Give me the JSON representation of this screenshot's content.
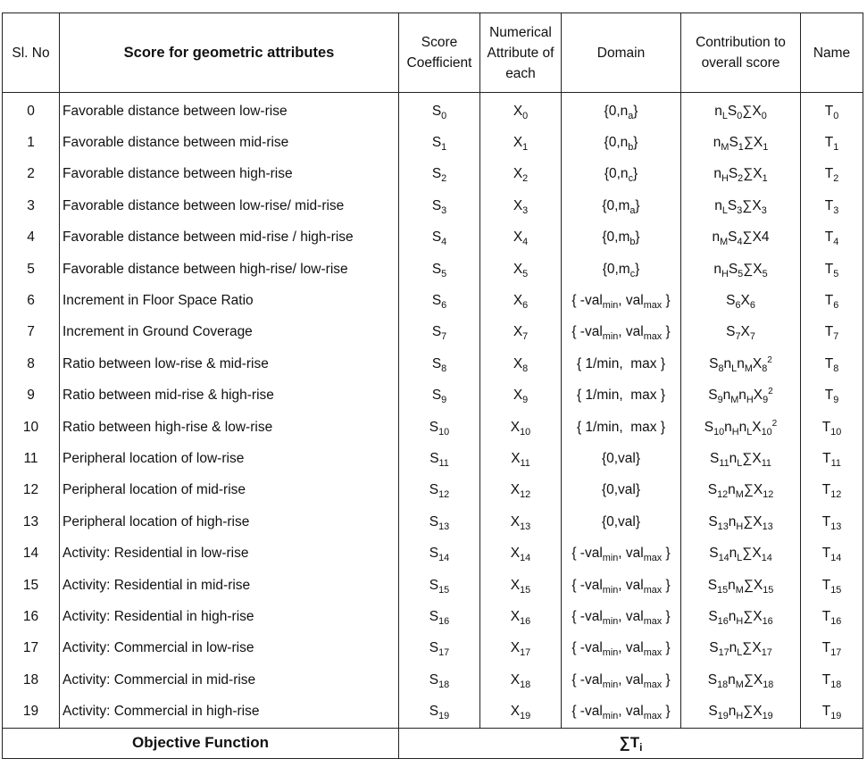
{
  "header": {
    "sl_no": "Sl. No",
    "attribute": "Score for geometric attributes",
    "score_coefficient": "Score Coefficient",
    "numerical_attribute": "Numerical Attribute of each",
    "domain": "Domain",
    "contribution": "Contribution to overall score",
    "name": "Name"
  },
  "rows": [
    {
      "sl": "0",
      "attribute": "Favorable distance between low-rise",
      "coef": "S<sub>0</sub>",
      "num": "X<sub>0</sub>",
      "domain": "{0,n<sub>a</sub>}",
      "contrib": "n<sub>L</sub>S<sub>0</sub>∑X<sub>0</sub>",
      "name": "T<sub>0</sub>"
    },
    {
      "sl": "1",
      "attribute": "Favorable distance between mid-rise",
      "coef": "S<sub>1</sub>",
      "num": "X<sub>1</sub>",
      "domain": "{0,n<sub>b</sub>}",
      "contrib": "n<sub>M</sub>S<sub>1</sub>∑X<sub>1</sub>",
      "name": "T<sub>1</sub>"
    },
    {
      "sl": "2",
      "attribute": "Favorable distance between high-rise",
      "coef": "S<sub>2</sub>",
      "num": "X<sub>2</sub>",
      "domain": "{0,n<sub>c</sub>}",
      "contrib": "n<sub>H</sub>S<sub>2</sub>∑X<sub>1</sub>",
      "name": "T<sub>2</sub>"
    },
    {
      "sl": "3",
      "attribute": "Favorable distance between low-rise/ mid-rise",
      "coef": "S<sub>3</sub>",
      "num": "X<sub>3</sub>",
      "domain": "{0,m<sub>a</sub>}",
      "contrib": "n<sub>L</sub>S<sub>3</sub>∑X<sub>3</sub>",
      "name": "T<sub>3</sub>"
    },
    {
      "sl": "4",
      "attribute": "Favorable distance between mid-rise / high-rise",
      "coef": "S<sub>4</sub>",
      "num": "X<sub>4</sub>",
      "domain": "{0,m<sub>b</sub>}",
      "contrib": "n<sub>M</sub>S<sub>4</sub>∑X4",
      "name": "T<sub>4</sub>"
    },
    {
      "sl": "5",
      "attribute": "Favorable distance between high-rise/ low-rise",
      "coef": "S<sub>5</sub>",
      "num": "X<sub>5</sub>",
      "domain": "{0,m<sub>c</sub>}",
      "contrib": "n<sub>H</sub>S<sub>5</sub>∑X<sub>5</sub>",
      "name": "T<sub>5</sub>"
    },
    {
      "sl": "6",
      "attribute": "Increment in Floor Space Ratio",
      "coef": "S<sub>6</sub>",
      "num": "X<sub>6</sub>",
      "domain": "{ -val<sub>min</sub>, val<sub>max</sub> }",
      "contrib": "S<sub>6</sub>X<sub>6</sub>",
      "name": "T<sub>6</sub>"
    },
    {
      "sl": "7",
      "attribute": "Increment in Ground Coverage",
      "coef": "S<sub>7</sub>",
      "num": "X<sub>7</sub>",
      "domain": "{ -val<sub>min</sub>, val<sub>max</sub> }",
      "contrib": "S<sub>7</sub>X<sub>7</sub>",
      "name": "T<sub>7</sub>"
    },
    {
      "sl": "8",
      "attribute": "Ratio between low-rise &amp; mid-rise",
      "coef": "S<sub>8</sub>",
      "num": "X<sub>8</sub>",
      "domain": "{ 1/min,&nbsp; max }",
      "contrib": "S<sub>8</sub>n<sub>L</sub>n<sub>M</sub>X<sub>8</sub><sup>2</sup>",
      "name": "T<sub>8</sub>"
    },
    {
      "sl": "9",
      "attribute": "Ratio between mid-rise &amp; high-rise",
      "coef": "S<sub>9</sub>",
      "num": "X<sub>9</sub>",
      "domain": "{ 1/min,&nbsp; max }",
      "contrib": "S<sub>9</sub>n<sub>M</sub>n<sub>H</sub>X<sub>9</sub><sup>2</sup>",
      "name": "T<sub>9</sub>"
    },
    {
      "sl": "10",
      "attribute": "Ratio between high-rise &amp; low-rise",
      "coef": "S<sub>10</sub>",
      "num": "X<sub>10</sub>",
      "domain": "{ 1/min,&nbsp; max }",
      "contrib": "S<sub>10</sub>n<sub>H</sub>n<sub>L</sub>X<sub>10</sub><sup>2</sup>",
      "name": "T<sub>10</sub>"
    },
    {
      "sl": "11",
      "attribute": "Peripheral location of low-rise",
      "coef": "S<sub>11</sub>",
      "num": "X<sub>11</sub>",
      "domain": "{0,val}",
      "contrib": "S<sub>11</sub>n<sub>L</sub>∑X<sub>11</sub>",
      "name": "T<sub>11</sub>"
    },
    {
      "sl": "12",
      "attribute": "Peripheral location of mid-rise",
      "coef": "S<sub>12</sub>",
      "num": "X<sub>12</sub>",
      "domain": "{0,val}",
      "contrib": "S<sub>12</sub>n<sub>M</sub>∑X<sub>12</sub>",
      "name": "T<sub>12</sub>"
    },
    {
      "sl": "13",
      "attribute": "Peripheral location of high-rise",
      "coef": "S<sub>13</sub>",
      "num": "X<sub>13</sub>",
      "domain": "{0,val}",
      "contrib": "S<sub>13</sub>n<sub>H</sub>∑X<sub>13</sub>",
      "name": "T<sub>13</sub>"
    },
    {
      "sl": "14",
      "attribute": "Activity: Residential in low-rise",
      "coef": "S<sub>14</sub>",
      "num": "X<sub>14</sub>",
      "domain": "{ -val<sub>min</sub>, val<sub>max</sub> }",
      "contrib": "S<sub>14</sub>n<sub>L</sub>∑X<sub>14</sub>",
      "name": "T<sub>14</sub>"
    },
    {
      "sl": "15",
      "attribute": "Activity: Residential in mid-rise",
      "coef": "S<sub>15</sub>",
      "num": "X<sub>15</sub>",
      "domain": "{ -val<sub>min</sub>, val<sub>max</sub> }",
      "contrib": "S<sub>15</sub>n<sub>M</sub>∑X<sub>15</sub>",
      "name": "T<sub>15</sub>"
    },
    {
      "sl": "16",
      "attribute": "Activity: Residential in high-rise",
      "coef": "S<sub>16</sub>",
      "num": "X<sub>16</sub>",
      "domain": "{ -val<sub>min</sub>, val<sub>max</sub> }",
      "contrib": "S<sub>16</sub>n<sub>H</sub>∑X<sub>16</sub>",
      "name": "T<sub>16</sub>"
    },
    {
      "sl": "17",
      "attribute": "Activity: Commercial in low-rise",
      "coef": "S<sub>17</sub>",
      "num": "X<sub>17</sub>",
      "domain": "{ -val<sub>min</sub>, val<sub>max</sub> }",
      "contrib": "S<sub>17</sub>n<sub>L</sub>∑X<sub>17</sub>",
      "name": "T<sub>17</sub>"
    },
    {
      "sl": "18",
      "attribute": "Activity: Commercial in mid-rise",
      "coef": "S<sub>18</sub>",
      "num": "X<sub>18</sub>",
      "domain": "{ -val<sub>min</sub>, val<sub>max</sub> }",
      "contrib": "S<sub>18</sub>n<sub>M</sub>∑X<sub>18</sub>",
      "name": "T<sub>18</sub>"
    },
    {
      "sl": "19",
      "attribute": "Activity: Commercial in high-rise",
      "coef": "S<sub>19</sub>",
      "num": "X<sub>19</sub>",
      "domain": "{ -val<sub>min</sub>, val<sub>max</sub> }",
      "contrib": "S<sub>19</sub>n<sub>H</sub>∑X<sub>19</sub>",
      "name": "T<sub>19</sub>"
    }
  ],
  "footer": {
    "label": "Objective Function",
    "value": "∑T<sub>i</sub>"
  }
}
